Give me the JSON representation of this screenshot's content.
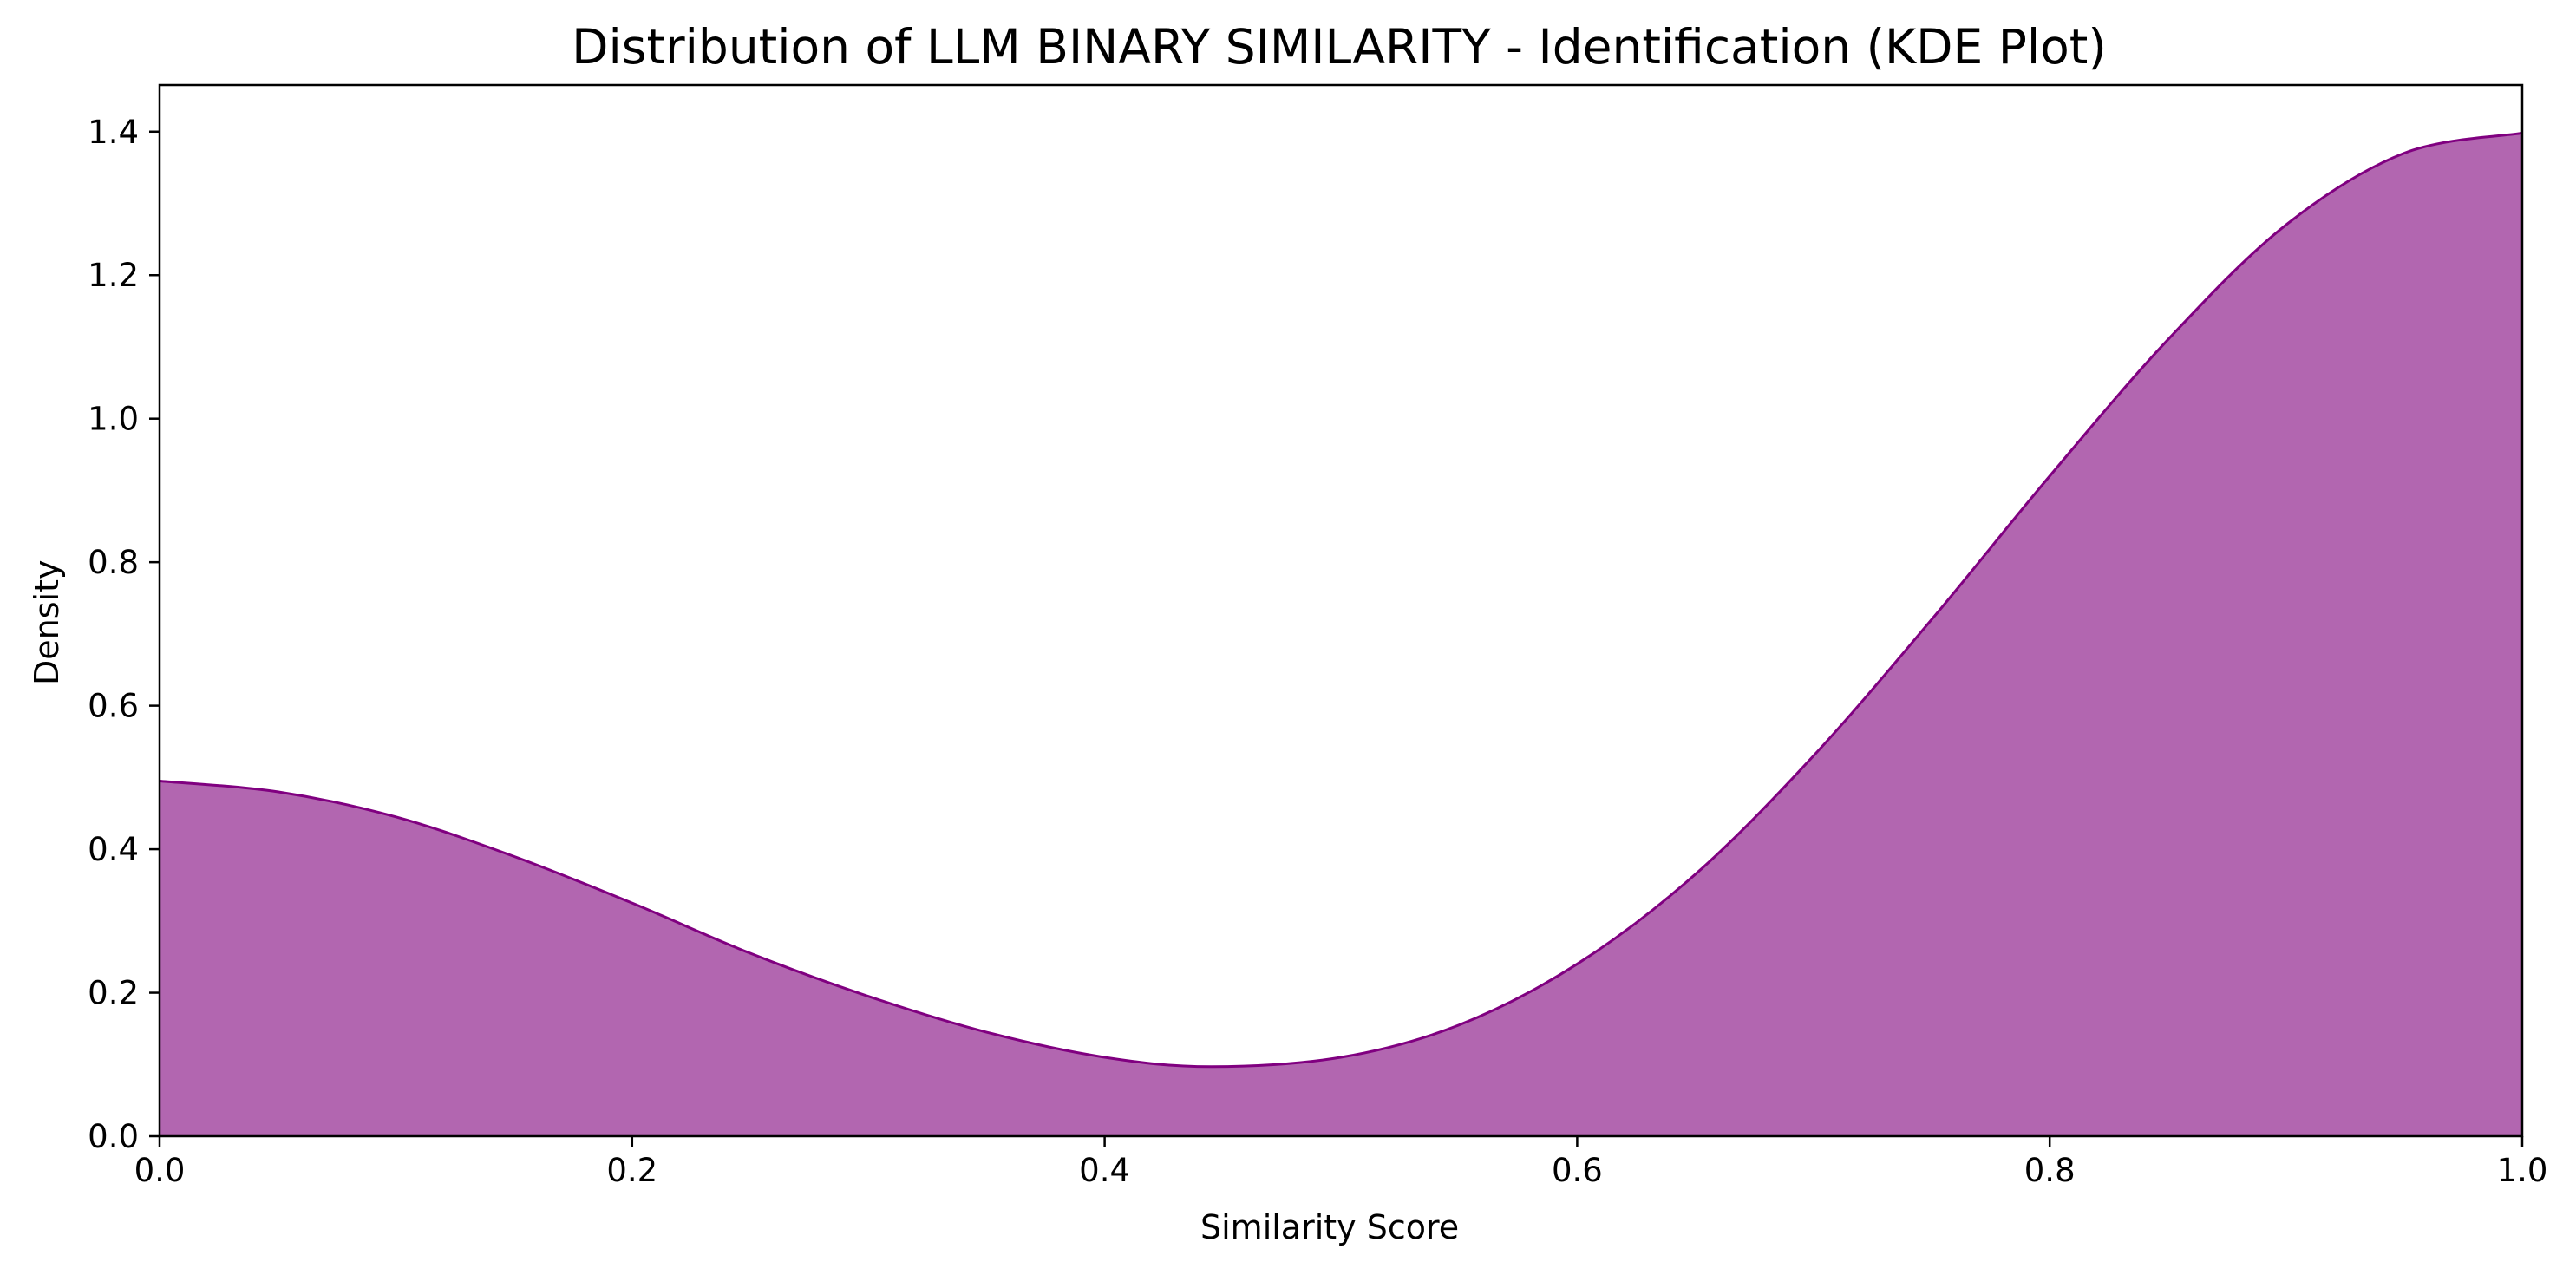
{
  "chart_data": {
    "type": "area",
    "title": "Distribution of LLM BINARY SIMILARITY - Identification (KDE Plot)",
    "xlabel": "Similarity Score",
    "ylabel": "Density",
    "xlim": [
      0.0,
      1.0
    ],
    "ylim": [
      0.0,
      1.465
    ],
    "x_ticks": [
      "0.0",
      "0.2",
      "0.4",
      "0.6",
      "0.8",
      "1.0"
    ],
    "y_ticks": [
      "0.0",
      "0.2",
      "0.4",
      "0.6",
      "0.8",
      "1.0",
      "1.2",
      "1.4"
    ],
    "grid": false,
    "legend": "none",
    "colors": {
      "fill": "#b266b0",
      "line": "#800080",
      "axis": "#000000"
    },
    "series": [
      {
        "x": [
          0.0,
          0.05,
          0.1,
          0.15,
          0.2,
          0.25,
          0.3,
          0.35,
          0.4,
          0.445,
          0.5,
          0.55,
          0.6,
          0.65,
          0.7,
          0.75,
          0.8,
          0.85,
          0.9,
          0.95,
          1.0
        ],
        "y": [
          0.495,
          0.48,
          0.445,
          0.39,
          0.325,
          0.255,
          0.195,
          0.145,
          0.11,
          0.097,
          0.11,
          0.155,
          0.24,
          0.365,
          0.53,
          0.72,
          0.92,
          1.11,
          1.27,
          1.37,
          1.398
        ]
      }
    ]
  }
}
